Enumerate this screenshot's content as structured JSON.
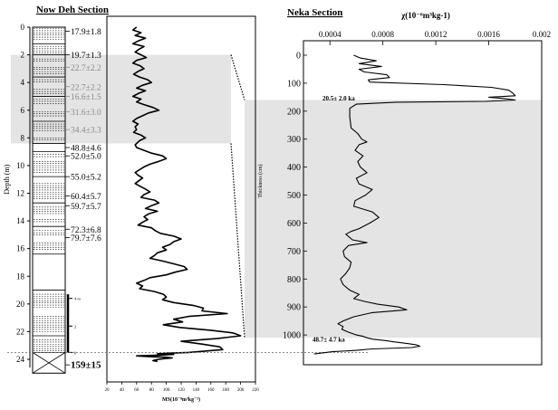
{
  "titles": {
    "left": "Now Deh Section",
    "right": "Neka Section"
  },
  "chart_data": [
    {
      "id": "now-deh",
      "type": "line",
      "title": "Now Deh Section",
      "ylabel": "Depth (m)",
      "xlabel": "MS(10⁻⁸m³kg⁻¹)",
      "y_range": [
        0,
        25
      ],
      "y_ticks": [
        "0",
        "2",
        "4",
        "6",
        "8",
        "10",
        "12",
        "14",
        "16",
        "18",
        "20",
        "22",
        "24"
      ],
      "y_reversed": true,
      "x_range": [
        20,
        220
      ],
      "x_ticks": [
        "20",
        "40",
        "60",
        "80",
        "100",
        "120",
        "140",
        "160",
        "180",
        "200",
        "220"
      ],
      "shaded_interval_m": [
        2,
        8.4
      ],
      "ages_ka": [
        {
          "depth": 0.3,
          "label": "17.9±1.8",
          "muted": false
        },
        {
          "depth": 2.0,
          "label": "19.7±1.3",
          "muted": false
        },
        {
          "depth": 2.9,
          "label": "22.7±2.2",
          "muted": true
        },
        {
          "depth": 4.3,
          "label": "22.7±2.2",
          "muted": true
        },
        {
          "depth": 5.0,
          "label": "16.6±1.5",
          "muted": true
        },
        {
          "depth": 6.1,
          "label": "31.6±3.0",
          "muted": true
        },
        {
          "depth": 7.4,
          "label": "34.4±3.3",
          "muted": true
        },
        {
          "depth": 8.7,
          "label": "48.8±4.6",
          "muted": false
        },
        {
          "depth": 9.3,
          "label": "52.0±5.0",
          "muted": false
        },
        {
          "depth": 10.8,
          "label": "55.0±5.2",
          "muted": false
        },
        {
          "depth": 12.2,
          "label": "60.4±5.7",
          "muted": false
        },
        {
          "depth": 12.9,
          "label": "59.7±5.7",
          "muted": false
        },
        {
          "depth": 14.6,
          "label": "72.3±6.8",
          "muted": false
        },
        {
          "depth": 15.2,
          "label": "79.7±7.6",
          "muted": false
        },
        {
          "depth": 24.4,
          "label": "159±15",
          "muted": false
        }
      ],
      "scale_marks": [
        {
          "depth": 19.6,
          "label": "4 m"
        },
        {
          "depth": 21.6,
          "label": "2"
        },
        {
          "depth": 23.5,
          "label": "0"
        }
      ],
      "series": [
        {
          "x": [
            60,
            55,
            66,
            58,
            72,
            62,
            55,
            70,
            63,
            58,
            66,
            73,
            60,
            55,
            65,
            70,
            62,
            56,
            64,
            75,
            80,
            68,
            60,
            72,
            62,
            55,
            66,
            60,
            70,
            82,
            90,
            76,
            68,
            60,
            55,
            62,
            58,
            60,
            56,
            66,
            72,
            64,
            58,
            60,
            70,
            80,
            95,
            100,
            90,
            78,
            70,
            64,
            58,
            62,
            68,
            63,
            58,
            65,
            72,
            78,
            70,
            66,
            84,
            90,
            80,
            72,
            88,
            76,
            70,
            75,
            68,
            62,
            80,
            85,
            92,
            110,
            120,
            110,
            105,
            95,
            100,
            88,
            84,
            78,
            95,
            110,
            124,
            128,
            112,
            100,
            78,
            70,
            60,
            68,
            64,
            84,
            96,
            100,
            95,
            110,
            136,
            150,
            148,
            182,
            130,
            110,
            122,
            96,
            118,
            160,
            190,
            200,
            168,
            120,
            148,
            172,
            176,
            130,
            108,
            88,
            110,
            90,
            60,
            75,
            100,
            108,
            98,
            90,
            85,
            82,
            88
          ],
          "y": [
            0,
            0.2,
            0.4,
            0.6,
            0.8,
            1,
            1.2,
            1.4,
            1.6,
            1.8,
            2,
            2.2,
            2.4,
            2.6,
            2.8,
            3,
            3.2,
            3.4,
            3.6,
            3.8,
            4,
            4.2,
            4.4,
            4.6,
            4.8,
            5,
            5.2,
            5.4,
            5.6,
            5.8,
            6,
            6.2,
            6.4,
            6.6,
            6.8,
            7,
            7.2,
            7.4,
            7.6,
            7.8,
            8,
            8.2,
            8.5,
            8.7,
            8.9,
            9.1,
            9.3,
            9.5,
            9.7,
            9.9,
            10.1,
            10.3,
            10.5,
            10.7,
            10.9,
            11.1,
            11.3,
            11.5,
            11.7,
            11.9,
            12.1,
            12.3,
            12.5,
            12.7,
            12.9,
            13.1,
            13.3,
            13.5,
            13.7,
            13.9,
            14.1,
            14.3,
            14.5,
            14.7,
            14.9,
            15.1,
            15.3,
            15.5,
            15.7,
            15.9,
            16.1,
            16.3,
            16.5,
            16.7,
            16.9,
            17.1,
            17.3,
            17.5,
            17.7,
            17.9,
            18.1,
            18.3,
            18.5,
            18.7,
            18.9,
            19.1,
            19.3,
            19.5,
            19.7,
            19.9,
            20.1,
            20.3,
            20.5,
            20.7,
            20.9,
            21.1,
            21.3,
            21.5,
            21.7,
            21.9,
            22.1,
            22.3,
            22.5,
            22.7,
            22.9,
            23.1,
            23.3,
            23.5,
            23.55,
            23.6,
            23.65,
            23.7,
            23.75,
            23.8,
            23.85,
            23.9,
            23.95,
            24,
            24.05,
            24.1,
            24.15
          ]
        }
      ]
    },
    {
      "id": "neka",
      "type": "line",
      "title": "Neka Section",
      "xlabel": "χ(10⁻⁶m³kg-1)",
      "ylabel": "Thickness (cm)",
      "x_range": [
        0.0002,
        0.002
      ],
      "x_ticks": [
        "0.0004",
        "0.0008",
        "0.0012",
        "0.0016",
        "0.002"
      ],
      "y_range": [
        0,
        1100
      ],
      "y_ticks": [
        "0",
        "100",
        "200",
        "300",
        "400",
        "500",
        "600",
        "700",
        "800",
        "900",
        "1000"
      ],
      "y_reversed": true,
      "shaded_interval_cm": [
        160,
        1010
      ],
      "annotations": [
        {
          "depth": 152,
          "label": "20.5± 2.0 ka"
        },
        {
          "depth": 1015,
          "label": "48.7± 4.7 ka"
        }
      ],
      "series": [
        {
          "x": [
            0.00058,
            0.00063,
            0.00075,
            0.00062,
            0.00079,
            0.00062,
            0.00066,
            0.00083,
            0.00085,
            0.00069,
            0.0007,
            0.00126,
            0.00162,
            0.00175,
            0.00178,
            0.0018,
            0.0016,
            0.00172,
            0.0018,
            0.00158,
            0.0009,
            0.0006,
            0.00055,
            0.00055,
            0.00056,
            0.00061,
            0.00064,
            0.00068,
            0.00062,
            0.00059,
            0.00065,
            0.00061,
            0.00063,
            0.00068,
            0.0006,
            0.00062,
            0.00072,
            0.00067,
            0.00059,
            0.00058,
            0.00072,
            0.00077,
            0.0007,
            0.00062,
            0.00056,
            0.00052,
            0.00057,
            0.00068,
            0.00054,
            0.0005,
            0.00051,
            0.00056,
            0.00055,
            0.00052,
            0.00048,
            0.0005,
            0.00055,
            0.00062,
            0.00058,
            0.00066,
            0.00076,
            0.00092,
            0.00098,
            0.00072,
            0.00058,
            0.0005,
            0.00046,
            0.0005,
            0.00049,
            0.00054,
            0.0006,
            0.00065,
            0.00068,
            0.00072,
            0.00082,
            0.00089,
            0.00098,
            0.00105,
            0.00108,
            0.00102,
            0.00072,
            0.0006,
            0.00042,
            0.00028
          ],
          "y": [
            0,
            10,
            20,
            30,
            40,
            50,
            60,
            70,
            80,
            88,
            96,
            105,
            115,
            125,
            135,
            145,
            150,
            155,
            160,
            165,
            168,
            175,
            190,
            220,
            260,
            280,
            300,
            310,
            320,
            340,
            360,
            380,
            400,
            420,
            440,
            460,
            480,
            500,
            520,
            540,
            560,
            580,
            600,
            620,
            630,
            640,
            660,
            670,
            680,
            700,
            720,
            740,
            760,
            780,
            800,
            820,
            840,
            855,
            870,
            880,
            890,
            900,
            910,
            920,
            935,
            950,
            960,
            970,
            980,
            990,
            1000,
            1005,
            1010,
            1015,
            1020,
            1025,
            1030,
            1035,
            1040,
            1045,
            1050,
            1055,
            1060,
            1068
          ]
        }
      ]
    }
  ]
}
